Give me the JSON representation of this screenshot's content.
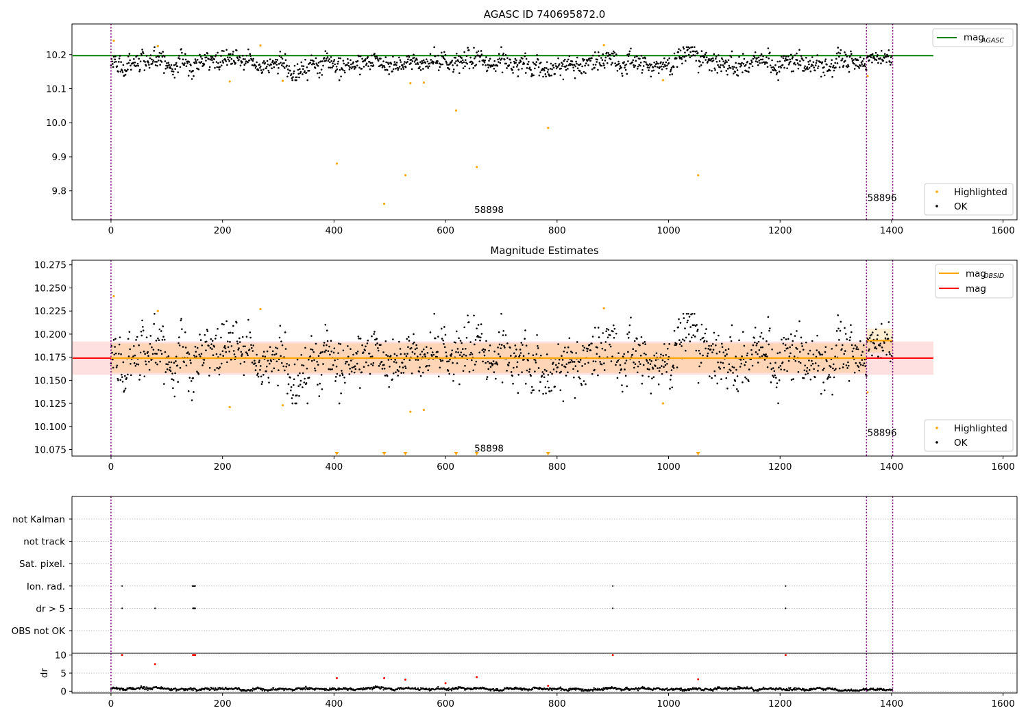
{
  "chart_data": [
    {
      "type": "scatter",
      "title": "AGASC ID 740695872.0",
      "xlim": [
        -70,
        1625
      ],
      "ylim": [
        9.715,
        10.29
      ],
      "xticks": [
        0,
        200,
        400,
        600,
        800,
        1000,
        1200,
        1400,
        1600
      ],
      "xtick_labels": [
        "0",
        "200",
        "400",
        "600",
        "800",
        "1000",
        "1200",
        "1400",
        "1600"
      ],
      "yticks": [
        9.8,
        9.9,
        10.0,
        10.1,
        10.2
      ],
      "ytick_labels": [
        "9.8",
        "9.9",
        "10.0",
        "10.1",
        "10.2"
      ],
      "hline": {
        "name": "mag",
        "subscript": "AGASC",
        "y": 10.197,
        "x_range": [
          0,
          1475
        ],
        "color": "#008000"
      },
      "vlines": [
        0,
        1355,
        1402
      ],
      "obsid_labels": [
        {
          "text": "58898",
          "x": 678,
          "y": 9.735
        },
        {
          "text": "58896",
          "x": 1383,
          "y": 9.77
        }
      ],
      "legend_lines": [
        {
          "label": "mag",
          "subscript": "AGASC",
          "color": "#008000"
        }
      ],
      "legend_points": [
        {
          "label": "Highlighted",
          "color": "#ffa500"
        },
        {
          "label": "OK",
          "color": "#000000"
        }
      ],
      "ok_series": {
        "name": "OK",
        "color": "#000000",
        "x_range": [
          0,
          1402
        ],
        "count": 1400,
        "mean_segments": [
          {
            "x": [
              0,
              1355
            ],
            "y": 10.174,
            "sd": 0.017
          },
          {
            "x": [
              1355,
              1402
            ],
            "y": 10.194,
            "sd": 0.014
          }
        ]
      },
      "highlighted": {
        "name": "Highlighted",
        "color": "#ffa500",
        "x": [
          5,
          84,
          213,
          268,
          308,
          405,
          490,
          528,
          537,
          561,
          619,
          656,
          784,
          884,
          990,
          1053,
          1357
        ],
        "y": [
          10.241,
          10.225,
          10.121,
          10.227,
          10.123,
          9.88,
          9.762,
          9.846,
          10.116,
          10.118,
          10.036,
          9.87,
          9.985,
          10.228,
          10.125,
          9.846,
          10.137
        ]
      }
    },
    {
      "type": "scatter",
      "title": "Magnitude Estimates",
      "xlim": [
        -70,
        1625
      ],
      "ylim": [
        10.068,
        10.28
      ],
      "xticks": [
        0,
        200,
        400,
        600,
        800,
        1000,
        1200,
        1400,
        1600
      ],
      "xtick_labels": [
        "0",
        "200",
        "400",
        "600",
        "800",
        "1000",
        "1200",
        "1400",
        "1600"
      ],
      "yticks": [
        10.075,
        10.1,
        10.125,
        10.15,
        10.175,
        10.2,
        10.225,
        10.25,
        10.275
      ],
      "ytick_labels": [
        "10.075",
        "10.100",
        "10.125",
        "10.150",
        "10.175",
        "10.200",
        "10.225",
        "10.250",
        "10.275"
      ],
      "mag_line": {
        "name": "mag",
        "y": 10.174,
        "band": [
          10.156,
          10.192
        ],
        "x_range": [
          0,
          1475
        ],
        "color": "#ff0000"
      },
      "mag_obsid_segments": [
        {
          "x": [
            0,
            1355
          ],
          "y": 10.174,
          "band": [
            10.158,
            10.19
          ]
        },
        {
          "x": [
            1355,
            1402
          ],
          "y": 10.193,
          "band": [
            10.18,
            10.206
          ]
        }
      ],
      "vlines": [
        0,
        1355,
        1402
      ],
      "obsid_labels": [
        {
          "text": "58898",
          "x": 678,
          "y": 10.073
        },
        {
          "text": "58896",
          "x": 1383,
          "y": 10.09
        }
      ],
      "legend_lines": [
        {
          "label": "mag",
          "subscript": "OBSID",
          "color": "#ffa500"
        },
        {
          "label": "mag",
          "subscript": "",
          "color": "#ff0000"
        }
      ],
      "legend_points": [
        {
          "label": "Highlighted",
          "color": "#ffa500"
        },
        {
          "label": "OK",
          "color": "#000000"
        }
      ],
      "off_scale_markers": {
        "color": "#ffa500",
        "x": [
          405,
          490,
          528,
          619,
          656,
          784,
          1053
        ]
      },
      "ok_series": {
        "name": "OK",
        "color": "#000000",
        "x_range": [
          0,
          1402
        ],
        "count": 1400
      },
      "highlighted": {
        "name": "Highlighted",
        "color": "#ffa500",
        "x": [
          5,
          84,
          213,
          268,
          308,
          537,
          561,
          884,
          990,
          1357
        ],
        "y": [
          10.241,
          10.225,
          10.121,
          10.227,
          10.123,
          10.116,
          10.118,
          10.228,
          10.125,
          10.137
        ]
      }
    },
    {
      "type": "scatter",
      "title": "",
      "xlim": [
        -70,
        1625
      ],
      "categories": [
        "OBS not OK",
        "dr > 5",
        "Ion. rad.",
        "Sat. pixel.",
        "not track",
        "not Kalman"
      ],
      "vlines": [
        0,
        1355,
        1402
      ],
      "flags": {
        "dr > 5": [
          20,
          79,
          147,
          148,
          149,
          150,
          151,
          900,
          1210
        ],
        "Ion. rad.": [
          20,
          146,
          147,
          148,
          149,
          150,
          151,
          900,
          1210
        ]
      }
    },
    {
      "type": "scatter",
      "title": "",
      "ylabel": "dr",
      "xlim": [
        -70,
        1625
      ],
      "ylim": [
        -0.5,
        10.5
      ],
      "yticks": [
        0,
        5,
        10
      ],
      "ytick_labels": [
        "0",
        "5",
        "10"
      ],
      "xticks": [
        0,
        200,
        400,
        600,
        800,
        1000,
        1200,
        1400,
        1600
      ],
      "xtick_labels": [
        "0",
        "200",
        "400",
        "600",
        "800",
        "1000",
        "1200",
        "1400",
        "1600"
      ],
      "vlines": [
        0,
        1355,
        1402
      ],
      "ok_series": {
        "name": "OK",
        "color": "#000000",
        "x_range": [
          0,
          1402
        ],
        "typical": 0.6
      },
      "red_points": {
        "color": "#ff0000",
        "x": [
          20,
          79,
          147,
          149,
          151,
          405,
          490,
          528,
          600,
          656,
          784,
          900,
          1053,
          1210
        ],
        "y": [
          10,
          7.5,
          10,
          10,
          10,
          3.6,
          3.6,
          3.2,
          2.2,
          3.9,
          1.5,
          10,
          3.3,
          10
        ]
      }
    }
  ]
}
